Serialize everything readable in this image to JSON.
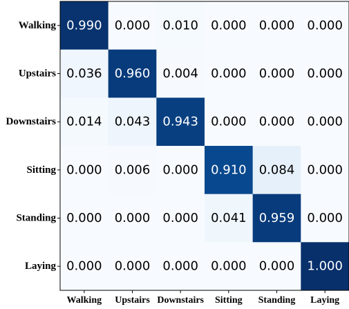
{
  "chart_data": {
    "type": "heatmap",
    "title": "",
    "xlabel": "",
    "ylabel": "",
    "x_categories": [
      "Walking",
      "Upstairs",
      "Downstairs",
      "Sitting",
      "Standing",
      "Laying"
    ],
    "y_categories": [
      "Walking",
      "Upstairs",
      "Downstairs",
      "Sitting",
      "Standing",
      "Laying"
    ],
    "values": [
      [
        0.99,
        0.0,
        0.01,
        0.0,
        0.0,
        0.0
      ],
      [
        0.036,
        0.96,
        0.004,
        0.0,
        0.0,
        0.0
      ],
      [
        0.014,
        0.043,
        0.943,
        0.0,
        0.0,
        0.0
      ],
      [
        0.0,
        0.006,
        0.0,
        0.91,
        0.084,
        0.0
      ],
      [
        0.0,
        0.0,
        0.0,
        0.041,
        0.959,
        0.0
      ],
      [
        0.0,
        0.0,
        0.0,
        0.0,
        0.0,
        1.0
      ]
    ],
    "labels": [
      [
        "0.990",
        "0.000",
        "0.010",
        "0.000",
        "0.000",
        "0.000"
      ],
      [
        "0.036",
        "0.960",
        "0.004",
        "0.000",
        "0.000",
        "0.000"
      ],
      [
        "0.014",
        "0.043",
        "0.943",
        "0.000",
        "0.000",
        "0.000"
      ],
      [
        "0.000",
        "0.006",
        "0.000",
        "0.910",
        "0.084",
        "0.000"
      ],
      [
        "0.000",
        "0.000",
        "0.000",
        "0.041",
        "0.959",
        "0.000"
      ],
      [
        "0.000",
        "0.000",
        "0.000",
        "0.000",
        "0.000",
        "1.000"
      ]
    ],
    "colormap": "Blues",
    "value_range": [
      0,
      1
    ],
    "grid": false,
    "colors": {
      "low": "#f7fbff",
      "high": "#08306b",
      "text_dark": "#000000",
      "text_light": "#ffffff"
    }
  }
}
